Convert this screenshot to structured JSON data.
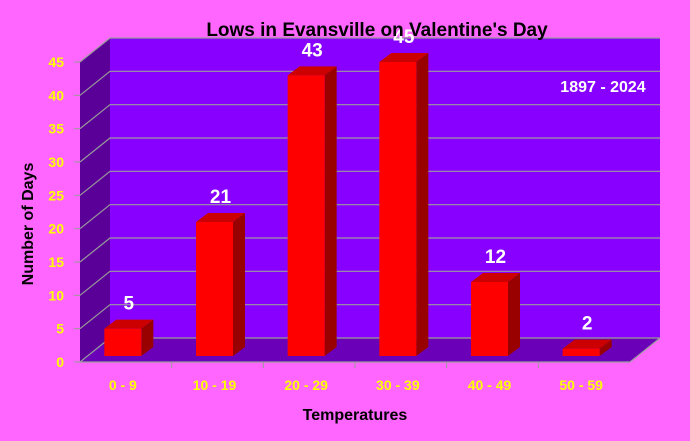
{
  "chart_data": {
    "type": "bar",
    "title": "Lows in Evansville on Valentine's Day",
    "annotation": "1897 - 2024",
    "xlabel": "Temperatures",
    "ylabel": "Number of Days",
    "categories": [
      "0 - 9",
      "10 - 19",
      "20 - 29",
      "30 - 39",
      "40 - 49",
      "50 - 59"
    ],
    "values": [
      5,
      21,
      43,
      45,
      12,
      2
    ],
    "ylim": [
      0,
      45
    ],
    "yticks": [
      0,
      5,
      10,
      15,
      20,
      25,
      30,
      35,
      40,
      45
    ],
    "grid": true,
    "legend": "none",
    "colors": {
      "page_background": "#ff66ff",
      "plot_back_wall": "#8800ff",
      "plot_side_wall": "#5a0099",
      "plot_floor": "#6a00b8",
      "bar_front": "#ff0000",
      "bar_side": "#990000",
      "bar_top": "#cc0000",
      "tick_labels": "#ffff00",
      "data_labels": "#ffffff",
      "gridlines": "#9a9a9a"
    }
  }
}
